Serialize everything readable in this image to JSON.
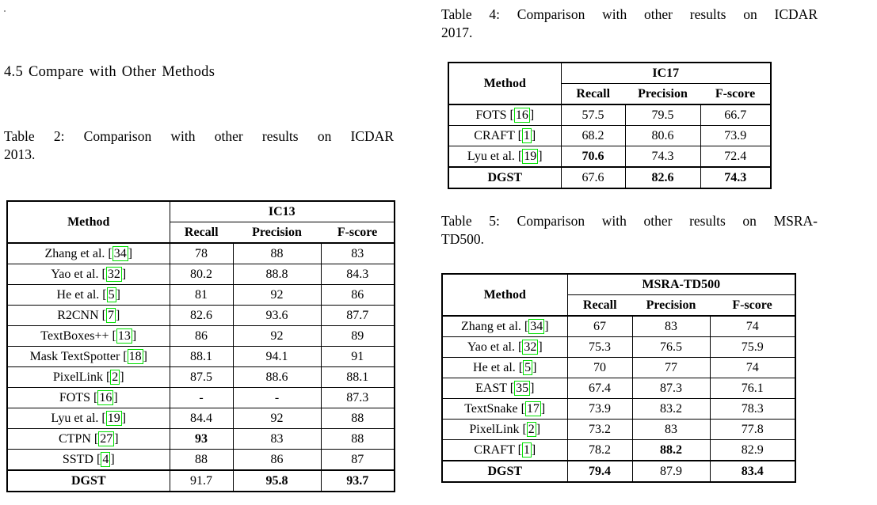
{
  "section": {
    "heading": "4.5 Compare with Other Methods"
  },
  "colors": {
    "text": "#000000",
    "background": "#ffffff",
    "table_border": "#000000",
    "citation_box": "#00e000"
  },
  "tables": [
    {
      "name": "table2-ic13",
      "caption_line1": "Table 2: Comparison with other results on ICDAR",
      "caption_line2": "2013.",
      "method_header": "Method",
      "dataset_header": "IC13",
      "stat_headers": [
        "Recall",
        "Precision",
        "F-score"
      ],
      "rows": [
        {
          "method": "Zhang et al.",
          "cite": "34",
          "values": [
            "78",
            "88",
            "83"
          ]
        },
        {
          "method": "Yao et al.",
          "cite": "32",
          "values": [
            "80.2",
            "88.8",
            "84.3"
          ]
        },
        {
          "method": "He et al.",
          "cite": "5",
          "values": [
            "81",
            "92",
            "86"
          ]
        },
        {
          "method": "R2CNN",
          "cite": "7",
          "values": [
            "82.6",
            "93.6",
            "87.7"
          ]
        },
        {
          "method": "TextBoxes++",
          "cite": "13",
          "values": [
            "86",
            "92",
            "89"
          ]
        },
        {
          "method": "Mask TextSpotter",
          "cite": "18",
          "values": [
            "88.1",
            "94.1",
            "91"
          ]
        },
        {
          "method": "PixelLink",
          "cite": "2",
          "values": [
            "87.5",
            "88.6",
            "88.1"
          ]
        },
        {
          "method": "FOTS",
          "cite": "16",
          "values": [
            "-",
            "-",
            "87.3"
          ]
        },
        {
          "method": "Lyu et al.",
          "cite": "19",
          "values": [
            "84.4",
            "92",
            "88"
          ]
        },
        {
          "method": "CTPN",
          "cite": "27",
          "values": [
            "93",
            "83",
            "88"
          ],
          "bold_values": [
            true,
            false,
            false
          ]
        },
        {
          "method": "SSTD",
          "cite": "4",
          "values": [
            "88",
            "86",
            "87"
          ]
        },
        {
          "method": "DGST",
          "cite": null,
          "values": [
            "91.7",
            "95.8",
            "93.7"
          ],
          "bold_values": [
            false,
            true,
            true
          ],
          "bold_method": true
        }
      ]
    },
    {
      "name": "table4-ic17",
      "caption_line1": "Table 4: Comparison with other results on ICDAR",
      "caption_line2": "2017.",
      "method_header": "Method",
      "dataset_header": "IC17",
      "stat_headers": [
        "Recall",
        "Precision",
        "F-score"
      ],
      "rows": [
        {
          "method": "FOTS",
          "cite": "16",
          "values": [
            "57.5",
            "79.5",
            "66.7"
          ]
        },
        {
          "method": "CRAFT",
          "cite": "1",
          "values": [
            "68.2",
            "80.6",
            "73.9"
          ]
        },
        {
          "method": "Lyu et al.",
          "cite": "19",
          "values": [
            "70.6",
            "74.3",
            "72.4"
          ],
          "bold_values": [
            true,
            false,
            false
          ]
        },
        {
          "method": "DGST",
          "cite": null,
          "values": [
            "67.6",
            "82.6",
            "74.3"
          ],
          "bold_values": [
            false,
            true,
            true
          ],
          "bold_method": true
        }
      ]
    },
    {
      "name": "table5-msra",
      "caption_line1": "Table 5: Comparison with other results on MSRA-",
      "caption_line2": "TD500.",
      "method_header": "Method",
      "dataset_header": "MSRA-TD500",
      "stat_headers": [
        "Recall",
        "Precision",
        "F-score"
      ],
      "rows": [
        {
          "method": "Zhang et al.",
          "cite": "34",
          "values": [
            "67",
            "83",
            "74"
          ]
        },
        {
          "method": "Yao et al.",
          "cite": "32",
          "values": [
            "75.3",
            "76.5",
            "75.9"
          ]
        },
        {
          "method": "He et al.",
          "cite": "5",
          "values": [
            "70",
            "77",
            "74"
          ]
        },
        {
          "method": "EAST",
          "cite": "35",
          "values": [
            "67.4",
            "87.3",
            "76.1"
          ]
        },
        {
          "method": "TextSnake",
          "cite": "17",
          "values": [
            "73.9",
            "83.2",
            "78.3"
          ]
        },
        {
          "method": "PixelLink",
          "cite": "2",
          "values": [
            "73.2",
            "83",
            "77.8"
          ]
        },
        {
          "method": "CRAFT",
          "cite": "1",
          "values": [
            "78.2",
            "88.2",
            "82.9"
          ],
          "bold_values": [
            false,
            true,
            false
          ]
        },
        {
          "method": "DGST",
          "cite": null,
          "values": [
            "79.4",
            "87.9",
            "83.4"
          ],
          "bold_values": [
            true,
            false,
            true
          ],
          "bold_method": true
        }
      ]
    }
  ]
}
